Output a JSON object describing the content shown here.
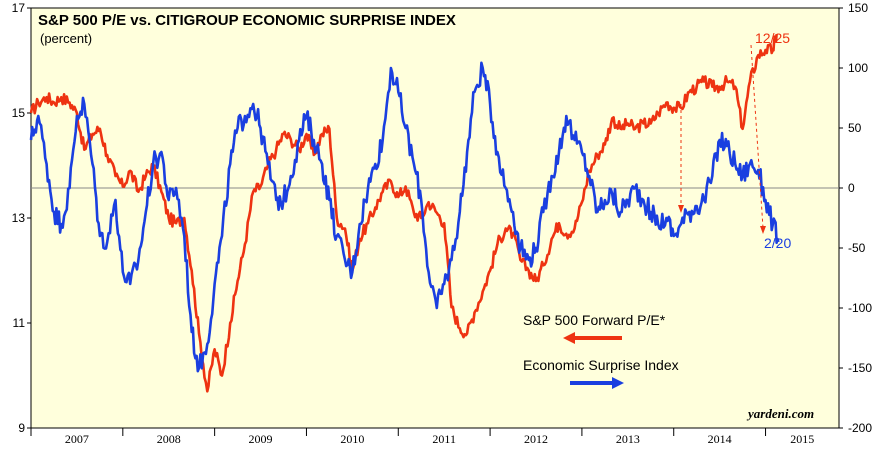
{
  "chart_data": {
    "type": "line",
    "title": "S&P 500 P/E vs. CITIGROUP ECONOMIC SURPRISE INDEX",
    "subtitle": "(percent)",
    "credit": "yardeni.com",
    "x_categories": [
      "2007",
      "2008",
      "2009",
      "2010",
      "2011",
      "2012",
      "2013",
      "2014",
      "2015"
    ],
    "ylim_left": [
      9,
      17
    ],
    "yticks_left": [
      "9",
      "11",
      "13",
      "15",
      "17"
    ],
    "ylim_right": [
      -200,
      150
    ],
    "yticks_right": [
      "-200",
      "-150",
      "-100",
      "-50",
      "0",
      "50",
      "100",
      "150"
    ],
    "background_color": "#ffffdc",
    "legend": [
      {
        "label": "S&P 500 Forward P/E*",
        "color": "#ee3311",
        "arrow": "left"
      },
      {
        "label": "Economic Surprise Index",
        "color": "#1a3fe0",
        "arrow": "right"
      }
    ],
    "annotations": [
      {
        "text": "12/25",
        "color": "#ee3311"
      },
      {
        "text": "2/20",
        "color": "#1a3fe0"
      }
    ],
    "series": [
      {
        "name": "S&P 500 Forward P/E*",
        "axis": "left",
        "color": "#ee3311",
        "x": [
          2007.0,
          2007.08,
          2007.17,
          2007.25,
          2007.33,
          2007.42,
          2007.5,
          2007.58,
          2007.67,
          2007.75,
          2007.83,
          2007.92,
          2008.0,
          2008.08,
          2008.17,
          2008.25,
          2008.33,
          2008.42,
          2008.5,
          2008.58,
          2008.67,
          2008.75,
          2008.83,
          2008.92,
          2009.0,
          2009.08,
          2009.17,
          2009.25,
          2009.33,
          2009.42,
          2009.5,
          2009.58,
          2009.67,
          2009.75,
          2009.83,
          2009.92,
          2010.0,
          2010.08,
          2010.17,
          2010.25,
          2010.33,
          2010.42,
          2010.5,
          2010.58,
          2010.67,
          2010.75,
          2010.83,
          2010.92,
          2011.0,
          2011.08,
          2011.17,
          2011.25,
          2011.33,
          2011.42,
          2011.5,
          2011.58,
          2011.67,
          2011.75,
          2011.83,
          2011.92,
          2012.0,
          2012.08,
          2012.17,
          2012.25,
          2012.33,
          2012.42,
          2012.5,
          2012.58,
          2012.67,
          2012.75,
          2012.83,
          2012.92,
          2013.0,
          2013.08,
          2013.17,
          2013.25,
          2013.33,
          2013.42,
          2013.5,
          2013.58,
          2013.67,
          2013.75,
          2013.83,
          2013.92,
          2014.0,
          2014.08,
          2014.17,
          2014.25,
          2014.33,
          2014.42,
          2014.5,
          2014.58,
          2014.67,
          2014.75,
          2014.83,
          2014.92,
          2015.0,
          2015.08,
          2015.12
        ],
        "values": [
          15.0,
          15.2,
          15.3,
          15.2,
          15.3,
          15.2,
          15.0,
          14.3,
          14.6,
          14.7,
          14.2,
          13.8,
          13.6,
          13.9,
          13.5,
          13.8,
          14.0,
          13.5,
          13.0,
          12.9,
          13.0,
          12.0,
          10.8,
          9.7,
          10.5,
          10.0,
          11.0,
          11.8,
          12.5,
          13.5,
          13.6,
          14.0,
          14.3,
          14.6,
          14.5,
          14.3,
          14.6,
          14.2,
          14.6,
          14.7,
          13.0,
          12.8,
          12.0,
          12.6,
          12.9,
          13.2,
          13.5,
          13.7,
          13.4,
          13.6,
          13.1,
          13.0,
          13.3,
          13.1,
          12.9,
          11.3,
          10.9,
          10.8,
          11.2,
          11.6,
          12.0,
          12.5,
          12.8,
          12.7,
          12.2,
          12.0,
          11.8,
          12.1,
          12.6,
          12.9,
          12.7,
          12.8,
          13.3,
          13.9,
          14.2,
          14.4,
          14.9,
          14.7,
          14.8,
          14.7,
          14.8,
          14.8,
          15.0,
          15.2,
          15.1,
          15.1,
          15.4,
          15.5,
          15.6,
          15.5,
          15.5,
          15.6,
          15.5,
          14.7,
          15.6,
          16.1,
          16.2,
          16.2,
          16.5
        ]
      },
      {
        "name": "Economic Surprise Index",
        "axis": "right",
        "color": "#1a3fe0",
        "x": [
          2007.0,
          2007.08,
          2007.17,
          2007.25,
          2007.33,
          2007.42,
          2007.5,
          2007.58,
          2007.67,
          2007.75,
          2007.83,
          2007.92,
          2008.0,
          2008.08,
          2008.17,
          2008.25,
          2008.33,
          2008.42,
          2008.5,
          2008.58,
          2008.67,
          2008.75,
          2008.83,
          2008.92,
          2009.0,
          2009.08,
          2009.17,
          2009.25,
          2009.33,
          2009.42,
          2009.5,
          2009.58,
          2009.67,
          2009.75,
          2009.83,
          2009.92,
          2010.0,
          2010.08,
          2010.17,
          2010.25,
          2010.33,
          2010.42,
          2010.5,
          2010.58,
          2010.67,
          2010.75,
          2010.83,
          2010.92,
          2011.0,
          2011.08,
          2011.17,
          2011.25,
          2011.33,
          2011.42,
          2011.5,
          2011.58,
          2011.67,
          2011.75,
          2011.83,
          2011.92,
          2012.0,
          2012.08,
          2012.17,
          2012.25,
          2012.33,
          2012.42,
          2012.5,
          2012.58,
          2012.67,
          2012.75,
          2012.83,
          2012.92,
          2013.0,
          2013.08,
          2013.17,
          2013.25,
          2013.33,
          2013.42,
          2013.5,
          2013.58,
          2013.67,
          2013.75,
          2013.83,
          2013.92,
          2014.0,
          2014.08,
          2014.17,
          2014.25,
          2014.33,
          2014.42,
          2014.5,
          2014.58,
          2014.67,
          2014.75,
          2014.83,
          2014.92,
          2015.0,
          2015.08,
          2015.14
        ],
        "values": [
          40,
          60,
          20,
          -20,
          -30,
          0,
          60,
          70,
          20,
          -40,
          -45,
          -10,
          -70,
          -80,
          -60,
          -20,
          20,
          30,
          -10,
          0,
          -40,
          -120,
          -150,
          -130,
          -80,
          -40,
          20,
          50,
          60,
          70,
          50,
          20,
          -10,
          -10,
          10,
          40,
          60,
          40,
          20,
          -10,
          -40,
          -60,
          -70,
          -30,
          0,
          20,
          40,
          100,
          80,
          50,
          20,
          -10,
          -70,
          -100,
          -80,
          -60,
          -20,
          30,
          80,
          100,
          70,
          30,
          0,
          -20,
          -50,
          -60,
          -50,
          -20,
          10,
          30,
          60,
          40,
          30,
          10,
          -20,
          -10,
          -5,
          -20,
          -10,
          0,
          -10,
          -20,
          -30,
          -25,
          -40,
          -30,
          -20,
          -15,
          -10,
          10,
          40,
          35,
          20,
          10,
          20,
          15,
          -10,
          -30,
          -45
        ]
      }
    ]
  }
}
